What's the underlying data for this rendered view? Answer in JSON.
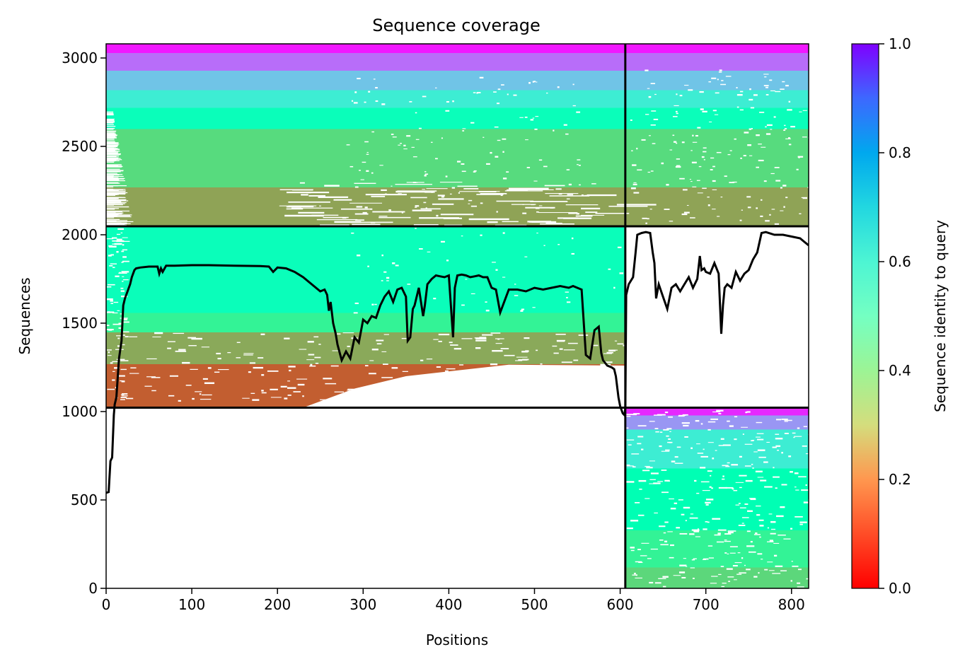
{
  "chart_data": {
    "type": "heatmap",
    "title": "Sequence coverage",
    "xlabel": "Positions",
    "ylabel": "Sequences",
    "xlim": [
      0,
      820
    ],
    "ylim": [
      0,
      3080
    ],
    "xticks": [
      0,
      100,
      200,
      300,
      400,
      500,
      600,
      700,
      800
    ],
    "yticks": [
      0,
      500,
      1000,
      1500,
      2000,
      2500,
      3000
    ],
    "colorbar": {
      "label": "Sequence identity to query",
      "ticks": [
        0.0,
        0.2,
        0.4,
        0.6,
        0.8,
        1.0
      ],
      "tick_labels": [
        "0.0",
        "0.2",
        "0.4",
        "0.6",
        "0.8",
        "1.0"
      ],
      "colormap": "rainbow_r",
      "range": [
        0,
        1
      ]
    },
    "dividers": {
      "x": [
        606
      ],
      "y": [
        1022,
        2048
      ]
    },
    "blocks": [
      {
        "name": "paired",
        "x": [
          0,
          820
        ],
        "y": [
          2048,
          3080
        ],
        "identity_bands": [
          {
            "y": [
              2048,
              2270
            ],
            "identity": 0.22
          },
          {
            "y": [
              2270,
              2600
            ],
            "identity": 0.33
          },
          {
            "y": [
              2600,
              2720
            ],
            "identity": 0.52
          },
          {
            "y": [
              2720,
              2820
            ],
            "identity": 0.62
          },
          {
            "y": [
              2820,
              2930
            ],
            "identity": 0.72
          },
          {
            "y": [
              2930,
              3030
            ],
            "identity": 0.86
          },
          {
            "y": [
              3030,
              3080
            ],
            "identity": 0.97
          }
        ]
      },
      {
        "name": "chain-A-unpaired",
        "x": [
          0,
          606
        ],
        "y": [
          1022,
          2048
        ],
        "identity_bands": [
          {
            "y": [
              1022,
              1270
            ],
            "identity": 0.12
          },
          {
            "y": [
              1270,
              1450
            ],
            "identity": 0.23
          },
          {
            "y": [
              1450,
              1560
            ],
            "identity": 0.4
          },
          {
            "y": [
              1560,
              2048
            ],
            "identity": 0.52
          }
        ]
      },
      {
        "name": "chain-B-unpaired",
        "x": [
          606,
          820
        ],
        "y": [
          0,
          1022
        ],
        "identity_bands": [
          {
            "y": [
              0,
              120
            ],
            "identity": 0.32
          },
          {
            "y": [
              120,
              330
            ],
            "identity": 0.4
          },
          {
            "y": [
              330,
              680
            ],
            "identity": 0.5
          },
          {
            "y": [
              680,
              900
            ],
            "identity": 0.62
          },
          {
            "y": [
              900,
              980
            ],
            "identity": 0.8
          },
          {
            "y": [
              980,
              1022
            ],
            "identity": 0.95
          }
        ]
      }
    ],
    "coverage_line": {
      "name": "",
      "color": "#000000",
      "x": [
        0,
        3,
        5,
        7,
        9,
        10,
        12,
        15,
        18,
        20,
        22,
        25,
        28,
        30,
        33,
        35,
        40,
        50,
        60,
        62,
        64,
        66,
        70,
        80,
        100,
        120,
        150,
        180,
        190,
        195,
        200,
        210,
        220,
        230,
        240,
        250,
        255,
        258,
        260,
        262,
        265,
        268,
        270,
        275,
        280,
        285,
        290,
        295,
        300,
        305,
        310,
        315,
        320,
        325,
        330,
        335,
        340,
        345,
        350,
        352,
        355,
        358,
        360,
        365,
        370,
        372,
        375,
        380,
        385,
        390,
        395,
        400,
        405,
        407,
        410,
        415,
        420,
        425,
        430,
        435,
        440,
        445,
        450,
        455,
        460,
        470,
        480,
        490,
        500,
        510,
        520,
        530,
        540,
        545,
        550,
        555,
        560,
        565,
        570,
        575,
        578,
        580,
        585,
        590,
        593,
        595,
        598,
        600,
        603,
        605,
        606,
        607,
        610,
        615,
        618,
        620,
        625,
        630,
        635,
        638,
        640,
        642,
        645,
        650,
        655,
        660,
        665,
        670,
        675,
        680,
        685,
        690,
        693,
        695,
        698,
        700,
        705,
        710,
        715,
        718,
        720,
        722,
        725,
        730,
        735,
        740,
        745,
        750,
        755,
        760,
        765,
        770,
        780,
        790,
        800,
        810,
        815,
        820
      ],
      "y": [
        540,
        545,
        720,
        740,
        980,
        1040,
        1080,
        1300,
        1400,
        1600,
        1640,
        1680,
        1720,
        1760,
        1800,
        1810,
        1815,
        1820,
        1820,
        1780,
        1810,
        1790,
        1825,
        1825,
        1828,
        1828,
        1825,
        1823,
        1820,
        1790,
        1815,
        1810,
        1790,
        1760,
        1720,
        1680,
        1690,
        1660,
        1570,
        1620,
        1500,
        1440,
        1380,
        1290,
        1340,
        1300,
        1420,
        1390,
        1520,
        1500,
        1540,
        1530,
        1600,
        1650,
        1680,
        1620,
        1690,
        1700,
        1650,
        1400,
        1420,
        1580,
        1600,
        1700,
        1540,
        1600,
        1720,
        1750,
        1770,
        1765,
        1760,
        1770,
        1420,
        1700,
        1770,
        1775,
        1770,
        1760,
        1765,
        1770,
        1760,
        1760,
        1700,
        1690,
        1560,
        1690,
        1690,
        1680,
        1700,
        1690,
        1700,
        1710,
        1700,
        1710,
        1700,
        1690,
        1320,
        1300,
        1460,
        1480,
        1330,
        1290,
        1260,
        1250,
        1240,
        1200,
        1080,
        1030,
        990,
        980,
        1020,
        1660,
        1720,
        1760,
        1900,
        2000,
        2010,
        2015,
        2010,
        1900,
        1840,
        1640,
        1720,
        1650,
        1580,
        1700,
        1720,
        1680,
        1720,
        1760,
        1700,
        1750,
        1880,
        1800,
        1810,
        1790,
        1780,
        1840,
        1780,
        1440,
        1600,
        1700,
        1720,
        1700,
        1790,
        1740,
        1780,
        1800,
        1860,
        1900,
        2010,
        2015,
        2000,
        2000,
        1990,
        1980,
        1960,
        1940
      ]
    }
  }
}
